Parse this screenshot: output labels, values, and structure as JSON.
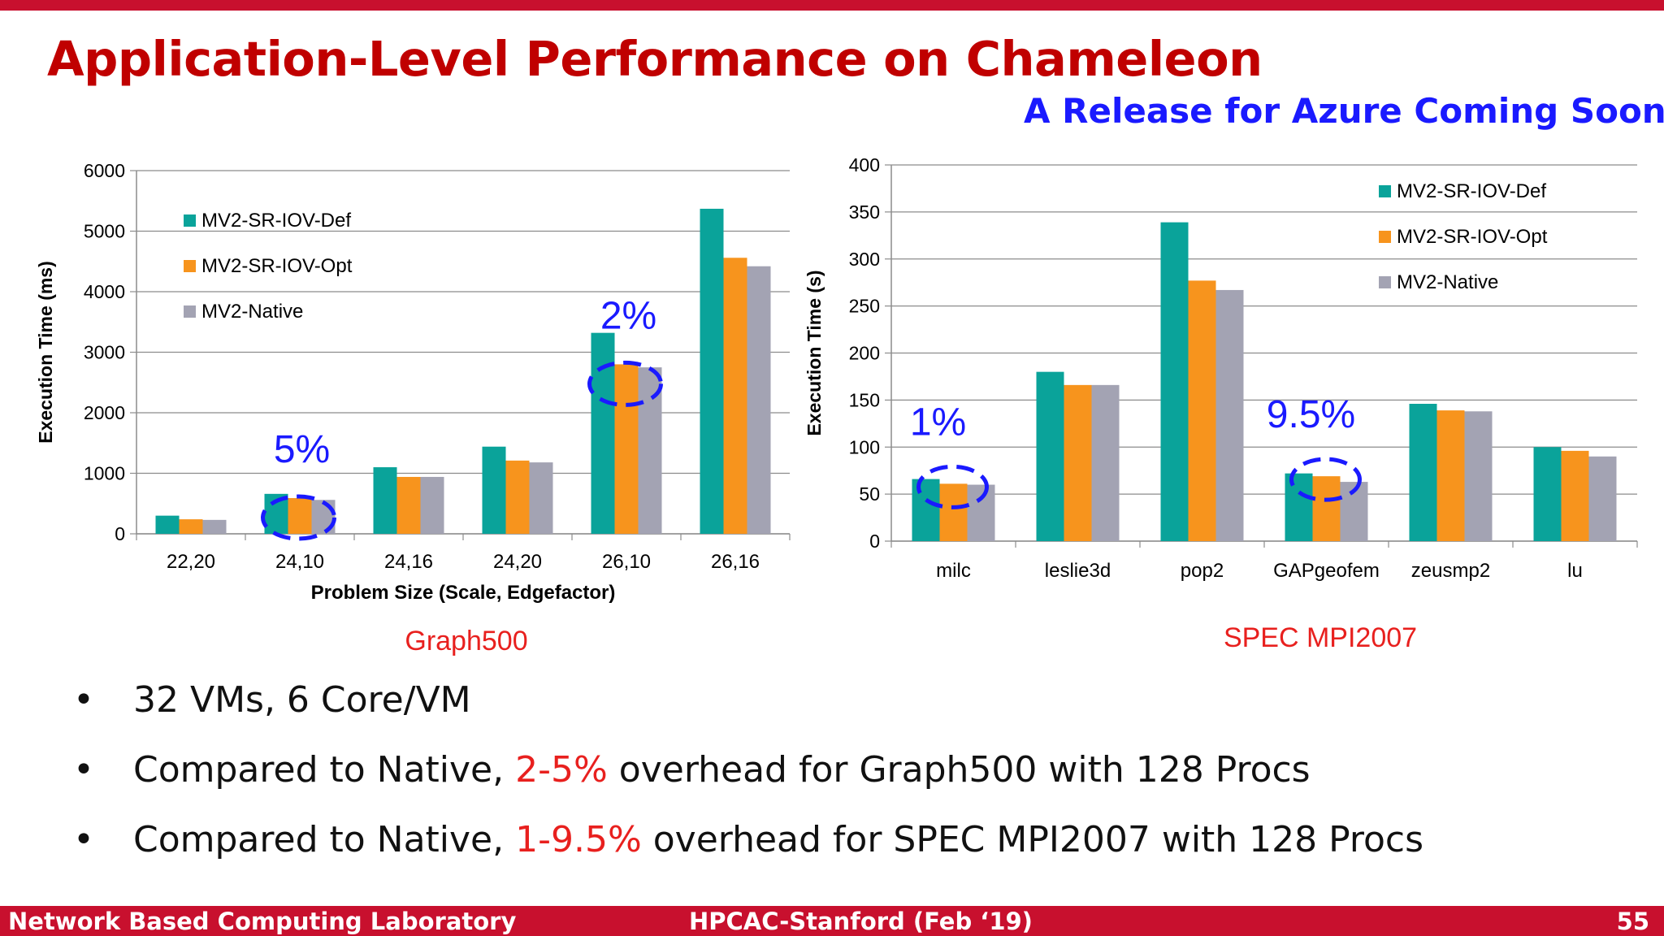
{
  "slide": {
    "title": "Application-Level Performance on Chameleon",
    "subtitle": "A Release for Azure Coming Soon"
  },
  "colors": {
    "series": [
      "#0aa39a",
      "#f7941d",
      "#a3a3b3"
    ],
    "title": "#c00000",
    "subtitle": "#1a1aff",
    "caption": "#e8201e",
    "annotation": "#1a1aff",
    "bar": "#c8102e"
  },
  "chart_data": [
    {
      "type": "bar",
      "categories": [
        "22,20",
        "24,10",
        "24,16",
        "24,20",
        "26,10",
        "26,16"
      ],
      "series": [
        {
          "name": "MV2-SR-IOV-Def",
          "values": [
            300,
            660,
            1100,
            1440,
            3320,
            5370
          ]
        },
        {
          "name": "MV2-SR-IOV-Opt",
          "values": [
            240,
            590,
            940,
            1210,
            2800,
            4560
          ]
        },
        {
          "name": "MV2-Native",
          "values": [
            230,
            560,
            940,
            1180,
            2750,
            4420
          ]
        }
      ],
      "ylabel": "Execution Time (ms)",
      "xlabel": "Problem Size (Scale, Edgefactor)",
      "caption": "Graph500",
      "ylim": [
        0,
        6000
      ],
      "yticks": [
        0,
        1000,
        2000,
        3000,
        4000,
        5000,
        6000
      ],
      "legend_position": "top-left",
      "grid": true,
      "annotations": [
        {
          "text": "5%",
          "category": "24,10"
        },
        {
          "text": "2%",
          "category": "26,10"
        }
      ]
    },
    {
      "type": "bar",
      "categories": [
        "milc",
        "leslie3d",
        "pop2",
        "GAPgeofem",
        "zeusmp2",
        "lu"
      ],
      "series": [
        {
          "name": "MV2-SR-IOV-Def",
          "values": [
            66,
            180,
            339,
            72,
            146,
            100
          ]
        },
        {
          "name": "MV2-SR-IOV-Opt",
          "values": [
            61,
            166,
            277,
            69,
            139,
            96
          ]
        },
        {
          "name": "MV2-Native",
          "values": [
            60,
            166,
            267,
            63,
            138,
            90
          ]
        }
      ],
      "ylabel": "Execution Time (s)",
      "xlabel": "",
      "caption": "SPEC MPI2007",
      "ylim": [
        0,
        400
      ],
      "yticks": [
        0,
        50,
        100,
        150,
        200,
        250,
        300,
        350,
        400
      ],
      "legend_position": "top-right",
      "grid": true,
      "annotations": [
        {
          "text": "1%",
          "category": "milc"
        },
        {
          "text": "9.5%",
          "category": "GAPgeofem"
        }
      ]
    }
  ],
  "bullets": [
    {
      "pre": "32 VMs, 6 Core/VM",
      "highlight": "",
      "post": ""
    },
    {
      "pre": "Compared to Native, ",
      "highlight": "2-5%",
      "post": " overhead for Graph500 with 128 Procs"
    },
    {
      "pre": "Compared to Native, ",
      "highlight": "1-9.5%",
      "post": " overhead for SPEC MPI2007 with 128 Procs"
    }
  ],
  "bullet_symbol": "•",
  "footer": {
    "left": "Network Based Computing Laboratory",
    "center": "HPCAC-Stanford (Feb ‘19)",
    "right": "55"
  }
}
